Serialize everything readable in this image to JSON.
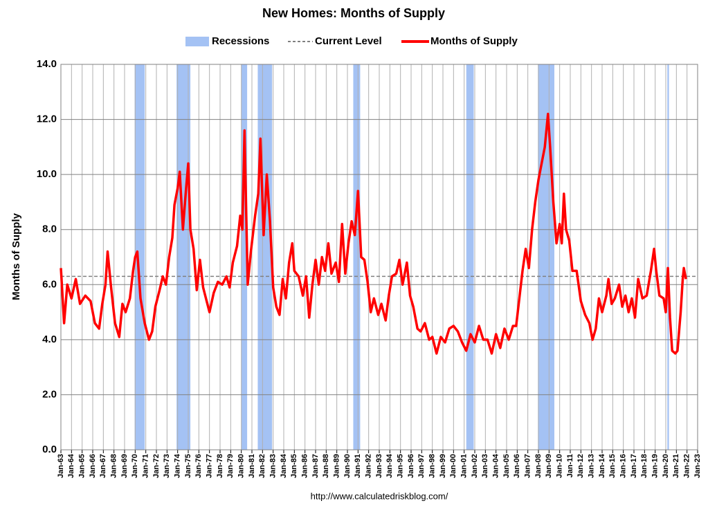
{
  "chart_data": {
    "type": "line",
    "title": "New Homes: Months of Supply",
    "y_label": "Months of Supply",
    "source": "http://www.calculatedriskblog.com/",
    "legend_position": "top",
    "grid": true,
    "xlim": [
      1963,
      2023
    ],
    "ylim": [
      0,
      14
    ],
    "yticks": [
      {
        "value": 0,
        "label": "0.0"
      },
      {
        "value": 2,
        "label": "2.0"
      },
      {
        "value": 4,
        "label": "4.0"
      },
      {
        "value": 6,
        "label": "6.0"
      },
      {
        "value": 8,
        "label": "8.0"
      },
      {
        "value": 10,
        "label": "10.0"
      },
      {
        "value": 12,
        "label": "12.0"
      },
      {
        "value": 14,
        "label": "14.0"
      }
    ],
    "xticks": [
      {
        "value": 1963,
        "label": "Jan-63"
      },
      {
        "value": 1964,
        "label": "Jan-64"
      },
      {
        "value": 1965,
        "label": "Jan-65"
      },
      {
        "value": 1966,
        "label": "Jan-66"
      },
      {
        "value": 1967,
        "label": "Jan-67"
      },
      {
        "value": 1968,
        "label": "Jan-68"
      },
      {
        "value": 1969,
        "label": "Jan-69"
      },
      {
        "value": 1970,
        "label": "Jan-70"
      },
      {
        "value": 1971,
        "label": "Jan-71"
      },
      {
        "value": 1972,
        "label": "Jan-72"
      },
      {
        "value": 1973,
        "label": "Jan-73"
      },
      {
        "value": 1974,
        "label": "Jan-74"
      },
      {
        "value": 1975,
        "label": "Jan-75"
      },
      {
        "value": 1976,
        "label": "Jan-76"
      },
      {
        "value": 1977,
        "label": "Jan-77"
      },
      {
        "value": 1978,
        "label": "Jan-78"
      },
      {
        "value": 1979,
        "label": "Jan-79"
      },
      {
        "value": 1980,
        "label": "Jan-80"
      },
      {
        "value": 1981,
        "label": "Jan-81"
      },
      {
        "value": 1982,
        "label": "Jan-82"
      },
      {
        "value": 1983,
        "label": "Jan-83"
      },
      {
        "value": 1984,
        "label": "Jan-84"
      },
      {
        "value": 1985,
        "label": "Jan-85"
      },
      {
        "value": 1986,
        "label": "Jan-86"
      },
      {
        "value": 1987,
        "label": "Jan-87"
      },
      {
        "value": 1988,
        "label": "Jan-88"
      },
      {
        "value": 1989,
        "label": "Jan-89"
      },
      {
        "value": 1990,
        "label": "Jan-90"
      },
      {
        "value": 1991,
        "label": "Jan-91"
      },
      {
        "value": 1992,
        "label": "Jan-92"
      },
      {
        "value": 1993,
        "label": "Jan-93"
      },
      {
        "value": 1994,
        "label": "Jan-94"
      },
      {
        "value": 1995,
        "label": "Jan-95"
      },
      {
        "value": 1996,
        "label": "Jan-96"
      },
      {
        "value": 1997,
        "label": "Jan-97"
      },
      {
        "value": 1998,
        "label": "Jan-98"
      },
      {
        "value": 1999,
        "label": "Jan-99"
      },
      {
        "value": 2000,
        "label": "Jan-00"
      },
      {
        "value": 2001,
        "label": "Jan-01"
      },
      {
        "value": 2002,
        "label": "Jan-02"
      },
      {
        "value": 2003,
        "label": "Jan-03"
      },
      {
        "value": 2004,
        "label": "Jan-04"
      },
      {
        "value": 2005,
        "label": "Jan-05"
      },
      {
        "value": 2006,
        "label": "Jan-06"
      },
      {
        "value": 2007,
        "label": "Jan-07"
      },
      {
        "value": 2008,
        "label": "Jan-08"
      },
      {
        "value": 2009,
        "label": "Jan-09"
      },
      {
        "value": 2010,
        "label": "Jan-10"
      },
      {
        "value": 2011,
        "label": "Jan-11"
      },
      {
        "value": 2012,
        "label": "Jan-12"
      },
      {
        "value": 2013,
        "label": "Jan-13"
      },
      {
        "value": 2014,
        "label": "Jan-14"
      },
      {
        "value": 2015,
        "label": "Jan-15"
      },
      {
        "value": 2016,
        "label": "Jan-16"
      },
      {
        "value": 2017,
        "label": "Jan-17"
      },
      {
        "value": 2018,
        "label": "Jan-18"
      },
      {
        "value": 2019,
        "label": "Jan-19"
      },
      {
        "value": 2020,
        "label": "Jan-20"
      },
      {
        "value": 2021,
        "label": "Jan-21"
      },
      {
        "value": 2022,
        "label": "Jan-22"
      },
      {
        "value": 2023,
        "label": "Jan-23"
      }
    ],
    "recessions": {
      "name": "Recessions",
      "color": "#a4c2f4",
      "spans": [
        [
          1969.95,
          1970.9
        ],
        [
          1973.9,
          1975.2
        ],
        [
          1980.0,
          1980.55
        ],
        [
          1981.55,
          1982.9
        ],
        [
          1990.55,
          1991.2
        ],
        [
          2001.2,
          2001.9
        ],
        [
          2007.95,
          2009.5
        ],
        [
          2020.15,
          2020.3
        ]
      ]
    },
    "reference_line": {
      "name": "Current Level",
      "value": 6.3,
      "color": "#808080"
    },
    "x": [
      1963.0,
      1963.3,
      1963.6,
      1964.0,
      1964.4,
      1964.8,
      1965.3,
      1965.8,
      1966.2,
      1966.6,
      1966.9,
      1967.2,
      1967.4,
      1967.7,
      1968.1,
      1968.5,
      1968.8,
      1969.1,
      1969.5,
      1969.8,
      1970.0,
      1970.2,
      1970.5,
      1970.9,
      1971.3,
      1971.6,
      1971.9,
      1972.3,
      1972.6,
      1972.9,
      1973.2,
      1973.5,
      1973.7,
      1974.0,
      1974.2,
      1974.5,
      1974.8,
      1975.0,
      1975.2,
      1975.5,
      1975.8,
      1976.1,
      1976.4,
      1976.8,
      1977.0,
      1977.4,
      1977.8,
      1978.2,
      1978.6,
      1978.9,
      1979.2,
      1979.6,
      1979.9,
      1980.1,
      1980.3,
      1980.6,
      1980.9,
      1981.3,
      1981.6,
      1981.8,
      1982.1,
      1982.4,
      1982.7,
      1983.0,
      1983.3,
      1983.6,
      1983.9,
      1984.2,
      1984.5,
      1984.8,
      1985.0,
      1985.4,
      1985.8,
      1986.1,
      1986.4,
      1986.7,
      1987.0,
      1987.3,
      1987.6,
      1987.9,
      1988.2,
      1988.5,
      1988.9,
      1989.2,
      1989.5,
      1989.8,
      1990.1,
      1990.4,
      1990.7,
      1991.0,
      1991.3,
      1991.6,
      1991.9,
      1992.2,
      1992.5,
      1992.9,
      1993.2,
      1993.6,
      1993.9,
      1994.2,
      1994.6,
      1994.9,
      1995.2,
      1995.6,
      1995.9,
      1996.2,
      1996.6,
      1996.9,
      1997.3,
      1997.7,
      1998.0,
      1998.4,
      1998.8,
      1999.2,
      1999.6,
      2000.0,
      2000.4,
      2000.8,
      2001.2,
      2001.6,
      2002.0,
      2002.4,
      2002.8,
      2003.2,
      2003.6,
      2004.0,
      2004.4,
      2004.8,
      2005.2,
      2005.6,
      2005.9,
      2006.2,
      2006.5,
      2006.8,
      2007.1,
      2007.4,
      2007.7,
      2008.0,
      2008.3,
      2008.6,
      2008.9,
      2009.1,
      2009.4,
      2009.7,
      2010.0,
      2010.2,
      2010.4,
      2010.6,
      2010.9,
      2011.2,
      2011.6,
      2012.0,
      2012.4,
      2012.8,
      2013.1,
      2013.4,
      2013.7,
      2014.0,
      2014.4,
      2014.6,
      2014.9,
      2015.2,
      2015.6,
      2015.9,
      2016.2,
      2016.5,
      2016.8,
      2017.1,
      2017.4,
      2017.8,
      2018.2,
      2018.6,
      2018.9,
      2019.1,
      2019.4,
      2019.8,
      2020.0,
      2020.2,
      2020.4,
      2020.6,
      2020.9,
      2021.1,
      2021.4,
      2021.6,
      2021.7,
      2021.9
    ],
    "series": [
      {
        "name": "Months of Supply",
        "color": "#ff0000",
        "values": [
          6.6,
          4.6,
          6.0,
          5.5,
          6.2,
          5.3,
          5.6,
          5.4,
          4.6,
          4.4,
          5.3,
          6.0,
          7.2,
          6.0,
          4.6,
          4.1,
          5.3,
          5.0,
          5.5,
          6.5,
          7.0,
          7.2,
          5.5,
          4.6,
          4.0,
          4.3,
          5.2,
          5.8,
          6.3,
          6.0,
          7.0,
          7.7,
          8.9,
          9.5,
          10.1,
          8.0,
          9.5,
          10.4,
          8.0,
          7.3,
          5.8,
          6.9,
          5.9,
          5.3,
          5.0,
          5.7,
          6.1,
          6.0,
          6.3,
          5.9,
          6.8,
          7.4,
          8.5,
          8.0,
          11.6,
          6.0,
          7.2,
          8.5,
          9.3,
          11.3,
          7.8,
          10.0,
          8.3,
          5.9,
          5.2,
          4.9,
          6.2,
          5.5,
          6.8,
          7.5,
          6.5,
          6.3,
          5.6,
          6.3,
          4.8,
          6.0,
          6.9,
          6.0,
          7.0,
          6.5,
          7.5,
          6.4,
          6.8,
          6.1,
          8.2,
          6.4,
          7.5,
          8.3,
          7.8,
          9.4,
          7.0,
          6.9,
          6.1,
          5.0,
          5.5,
          4.9,
          5.3,
          4.7,
          5.6,
          6.3,
          6.4,
          6.9,
          6.0,
          6.8,
          5.6,
          5.2,
          4.4,
          4.3,
          4.6,
          4.0,
          4.1,
          3.5,
          4.1,
          3.9,
          4.4,
          4.5,
          4.3,
          3.9,
          3.6,
          4.2,
          3.9,
          4.5,
          4.0,
          4.0,
          3.5,
          4.2,
          3.7,
          4.4,
          4.0,
          4.5,
          4.5,
          5.5,
          6.5,
          7.3,
          6.6,
          8.0,
          9.0,
          9.8,
          10.4,
          11.0,
          12.2,
          11.0,
          9.0,
          7.5,
          8.2,
          7.5,
          9.3,
          8.0,
          7.6,
          6.5,
          6.5,
          5.4,
          4.9,
          4.6,
          4.0,
          4.4,
          5.5,
          5.0,
          5.6,
          6.2,
          5.3,
          5.5,
          6.0,
          5.2,
          5.6,
          5.0,
          5.5,
          4.8,
          6.2,
          5.5,
          5.6,
          6.5,
          7.3,
          6.5,
          5.6,
          5.5,
          5.0,
          6.6,
          4.8,
          3.6,
          3.5,
          3.6,
          5.0,
          6.2,
          6.6,
          6.2
        ]
      }
    ]
  }
}
